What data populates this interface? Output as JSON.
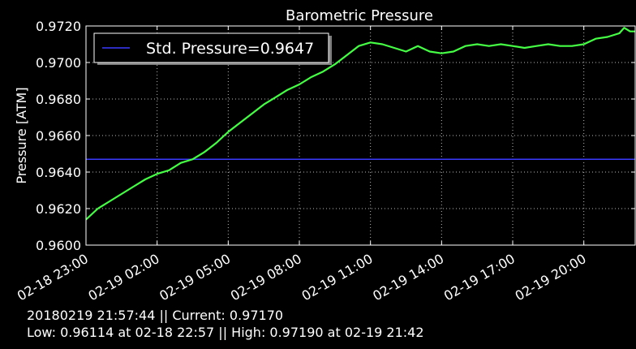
{
  "chart_data": {
    "type": "line",
    "title": "Barometric Pressure",
    "xlabel": "",
    "ylabel": "Pressure [ATM]",
    "xlim": [
      "02-18 23:00",
      "02-19 22:10"
    ],
    "ylim": [
      0.96,
      0.972
    ],
    "y_ticks": [
      "0.9600",
      "0.9620",
      "0.9640",
      "0.9660",
      "0.9680",
      "0.9700",
      "0.9720"
    ],
    "x_ticks": [
      "02-18 23:00",
      "02-19 02:00",
      "02-19 05:00",
      "02-19 08:00",
      "02-19 11:00",
      "02-19 14:00",
      "02-19 17:00",
      "02-19 20:00"
    ],
    "grid": true,
    "legend_position": "top-left",
    "colors": {
      "background": "#000000",
      "pressure_line": "#44ff44",
      "std_line": "#3a3aff",
      "axes": "#ffffff",
      "grid": "#bbbbbb"
    },
    "series": [
      {
        "name": "",
        "color": "#44ff44",
        "points": [
          [
            "02-18 23:00",
            0.9614
          ],
          [
            "02-18 23:30",
            0.962
          ],
          [
            "02-19 00:00",
            0.9624
          ],
          [
            "02-19 00:30",
            0.9628
          ],
          [
            "02-19 01:00",
            0.9632
          ],
          [
            "02-19 01:30",
            0.9636
          ],
          [
            "02-19 02:00",
            0.9639
          ],
          [
            "02-19 02:30",
            0.9641
          ],
          [
            "02-19 03:00",
            0.9645
          ],
          [
            "02-19 03:30",
            0.9647
          ],
          [
            "02-19 04:00",
            0.9651
          ],
          [
            "02-19 04:30",
            0.9656
          ],
          [
            "02-19 05:00",
            0.9662
          ],
          [
            "02-19 05:30",
            0.9667
          ],
          [
            "02-19 06:00",
            0.9672
          ],
          [
            "02-19 06:30",
            0.9677
          ],
          [
            "02-19 07:00",
            0.9681
          ],
          [
            "02-19 07:30",
            0.9685
          ],
          [
            "02-19 08:00",
            0.9688
          ],
          [
            "02-19 08:30",
            0.9692
          ],
          [
            "02-19 09:00",
            0.9695
          ],
          [
            "02-19 09:30",
            0.9699
          ],
          [
            "02-19 10:00",
            0.9704
          ],
          [
            "02-19 10:30",
            0.9709
          ],
          [
            "02-19 11:00",
            0.9711
          ],
          [
            "02-19 11:30",
            0.971
          ],
          [
            "02-19 12:00",
            0.9708
          ],
          [
            "02-19 12:30",
            0.9706
          ],
          [
            "02-19 13:00",
            0.9709
          ],
          [
            "02-19 13:30",
            0.9706
          ],
          [
            "02-19 14:00",
            0.9705
          ],
          [
            "02-19 14:30",
            0.9706
          ],
          [
            "02-19 15:00",
            0.9709
          ],
          [
            "02-19 15:30",
            0.971
          ],
          [
            "02-19 16:00",
            0.9709
          ],
          [
            "02-19 16:30",
            0.971
          ],
          [
            "02-19 17:00",
            0.9709
          ],
          [
            "02-19 17:30",
            0.9708
          ],
          [
            "02-19 18:00",
            0.9709
          ],
          [
            "02-19 18:30",
            0.971
          ],
          [
            "02-19 19:00",
            0.9709
          ],
          [
            "02-19 19:30",
            0.9709
          ],
          [
            "02-19 20:00",
            0.971
          ],
          [
            "02-19 20:30",
            0.9713
          ],
          [
            "02-19 21:00",
            0.9714
          ],
          [
            "02-19 21:30",
            0.9716
          ],
          [
            "02-19 21:42",
            0.9719
          ],
          [
            "02-19 21:57",
            0.9717
          ],
          [
            "02-19 22:10",
            0.9717
          ]
        ]
      },
      {
        "name": "Std. Pressure=0.9647",
        "color": "#3a3aff",
        "y": 0.9647
      }
    ]
  },
  "footer": {
    "line1": "20180219 21:57:44 || Current: 0.97170",
    "line2": "Low: 0.96114 at 02-18 22:57 || High: 0.97190 at 02-19 21:42"
  }
}
